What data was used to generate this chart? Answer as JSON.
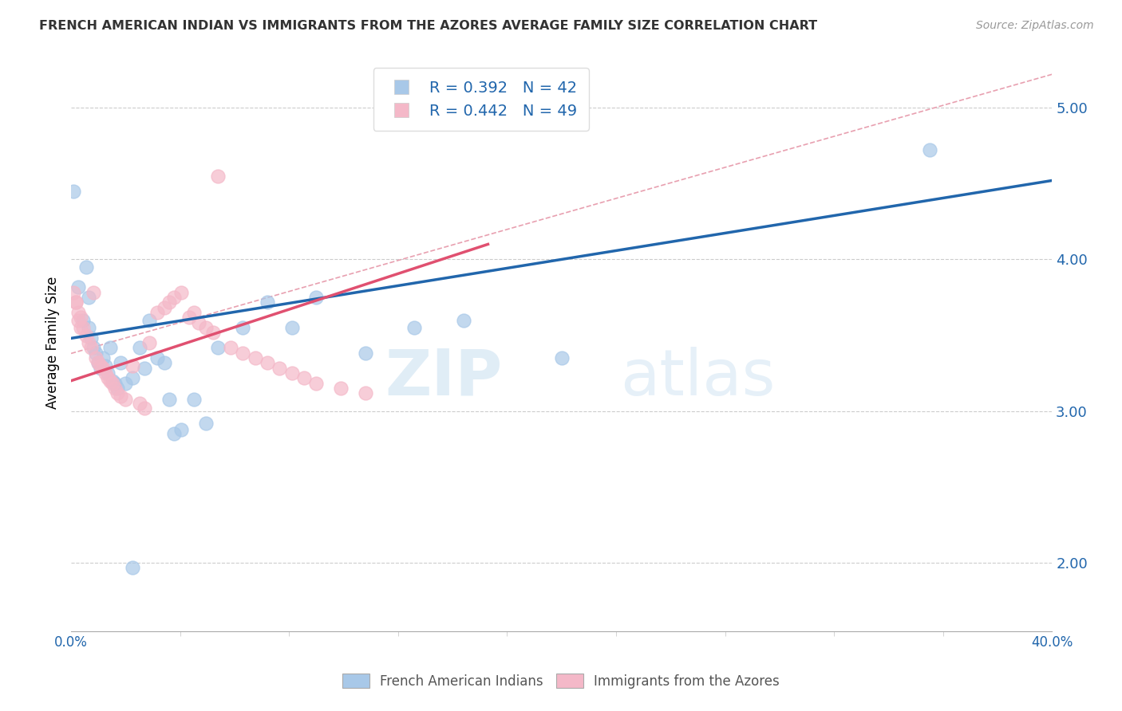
{
  "title": "FRENCH AMERICAN INDIAN VS IMMIGRANTS FROM THE AZORES AVERAGE FAMILY SIZE CORRELATION CHART",
  "source": "Source: ZipAtlas.com",
  "ylabel": "Average Family Size",
  "yticks": [
    2.0,
    3.0,
    4.0,
    5.0
  ],
  "xmin": 0.0,
  "xmax": 0.4,
  "ymin": 1.55,
  "ymax": 5.35,
  "blue_R": "0.392",
  "blue_N": "42",
  "pink_R": "0.442",
  "pink_N": "49",
  "blue_color": "#a8c8e8",
  "pink_color": "#f4b8c8",
  "blue_line_color": "#2166ac",
  "pink_line_color": "#e05070",
  "legend_label_blue": "French American Indians",
  "legend_label_pink": "Immigrants from the Azores",
  "watermark_zip": "ZIP",
  "watermark_atlas": "atlas",
  "blue_line": [
    [
      0.0,
      3.48
    ],
    [
      0.4,
      4.52
    ]
  ],
  "pink_line": [
    [
      0.0,
      3.2
    ],
    [
      0.17,
      4.1
    ]
  ],
  "diag_line": [
    [
      0.0,
      3.38
    ],
    [
      0.4,
      5.22
    ]
  ],
  "blue_points": [
    [
      0.001,
      4.45
    ],
    [
      0.003,
      3.82
    ],
    [
      0.005,
      3.6
    ],
    [
      0.006,
      3.95
    ],
    [
      0.007,
      3.75
    ],
    [
      0.007,
      3.55
    ],
    [
      0.008,
      3.48
    ],
    [
      0.009,
      3.42
    ],
    [
      0.01,
      3.38
    ],
    [
      0.011,
      3.32
    ],
    [
      0.012,
      3.28
    ],
    [
      0.013,
      3.35
    ],
    [
      0.014,
      3.3
    ],
    [
      0.015,
      3.25
    ],
    [
      0.016,
      3.42
    ],
    [
      0.017,
      3.2
    ],
    [
      0.018,
      3.18
    ],
    [
      0.019,
      3.15
    ],
    [
      0.02,
      3.32
    ],
    [
      0.022,
      3.18
    ],
    [
      0.025,
      3.22
    ],
    [
      0.028,
      3.42
    ],
    [
      0.03,
      3.28
    ],
    [
      0.032,
      3.6
    ],
    [
      0.035,
      3.35
    ],
    [
      0.038,
      3.32
    ],
    [
      0.04,
      3.08
    ],
    [
      0.042,
      2.85
    ],
    [
      0.045,
      2.88
    ],
    [
      0.05,
      3.08
    ],
    [
      0.055,
      2.92
    ],
    [
      0.06,
      3.42
    ],
    [
      0.07,
      3.55
    ],
    [
      0.08,
      3.72
    ],
    [
      0.09,
      3.55
    ],
    [
      0.1,
      3.75
    ],
    [
      0.12,
      3.38
    ],
    [
      0.14,
      3.55
    ],
    [
      0.16,
      3.6
    ],
    [
      0.2,
      3.35
    ],
    [
      0.35,
      4.72
    ],
    [
      0.025,
      1.97
    ]
  ],
  "pink_points": [
    [
      0.001,
      3.78
    ],
    [
      0.002,
      3.72
    ],
    [
      0.003,
      3.65
    ],
    [
      0.004,
      3.62
    ],
    [
      0.005,
      3.55
    ],
    [
      0.006,
      3.5
    ],
    [
      0.007,
      3.45
    ],
    [
      0.008,
      3.42
    ],
    [
      0.009,
      3.78
    ],
    [
      0.01,
      3.35
    ],
    [
      0.011,
      3.32
    ],
    [
      0.012,
      3.3
    ],
    [
      0.013,
      3.28
    ],
    [
      0.014,
      3.25
    ],
    [
      0.015,
      3.22
    ],
    [
      0.016,
      3.2
    ],
    [
      0.017,
      3.18
    ],
    [
      0.018,
      3.15
    ],
    [
      0.019,
      3.12
    ],
    [
      0.02,
      3.1
    ],
    [
      0.022,
      3.08
    ],
    [
      0.025,
      3.3
    ],
    [
      0.028,
      3.05
    ],
    [
      0.03,
      3.02
    ],
    [
      0.032,
      3.45
    ],
    [
      0.035,
      3.65
    ],
    [
      0.038,
      3.68
    ],
    [
      0.04,
      3.72
    ],
    [
      0.042,
      3.75
    ],
    [
      0.045,
      3.78
    ],
    [
      0.048,
      3.62
    ],
    [
      0.05,
      3.65
    ],
    [
      0.052,
      3.58
    ],
    [
      0.055,
      3.55
    ],
    [
      0.058,
      3.52
    ],
    [
      0.06,
      4.55
    ],
    [
      0.065,
      3.42
    ],
    [
      0.07,
      3.38
    ],
    [
      0.075,
      3.35
    ],
    [
      0.08,
      3.32
    ],
    [
      0.085,
      3.28
    ],
    [
      0.09,
      3.25
    ],
    [
      0.095,
      3.22
    ],
    [
      0.1,
      3.18
    ],
    [
      0.11,
      3.15
    ],
    [
      0.12,
      3.12
    ],
    [
      0.002,
      3.72
    ],
    [
      0.003,
      3.6
    ],
    [
      0.004,
      3.55
    ]
  ]
}
